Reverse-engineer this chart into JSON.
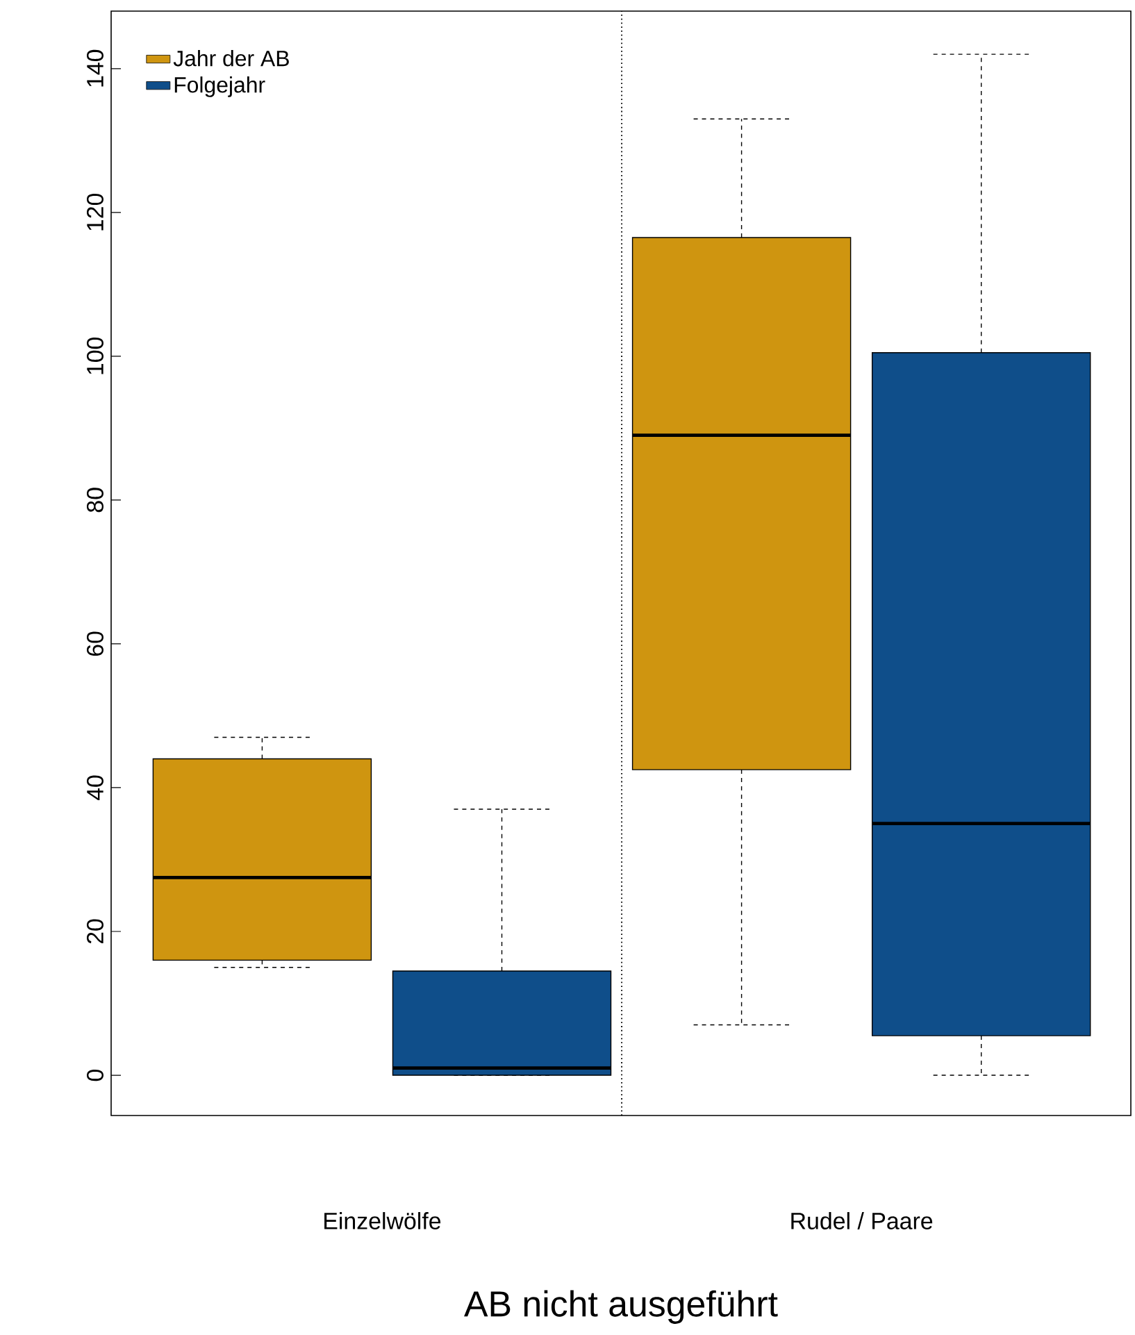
{
  "chart_data": {
    "type": "box",
    "xlabel": "AB nicht ausgeführt",
    "categories": [
      "Einzelwölfe",
      "Rudel / Paare"
    ],
    "series": [
      {
        "name": "Jahr der AB",
        "color": "#cf9510",
        "boxes": [
          {
            "low": 15,
            "q1": 16,
            "median": 27.5,
            "q3": 44,
            "high": 47
          },
          {
            "low": 7,
            "q1": 42.5,
            "median": 89,
            "q3": 116.5,
            "high": 133
          }
        ]
      },
      {
        "name": "Folgejahr",
        "color": "#0f4e8a",
        "boxes": [
          {
            "low": 0,
            "q1": 0,
            "median": 1,
            "q3": 14.5,
            "high": 37
          },
          {
            "low": 0,
            "q1": 5.5,
            "median": 35,
            "q3": 100.5,
            "high": 142
          }
        ]
      }
    ],
    "ylim": [
      -5.6,
      148
    ],
    "yticks": [
      0,
      20,
      40,
      60,
      80,
      100,
      120,
      140
    ],
    "legend": "top left",
    "grid": false
  }
}
